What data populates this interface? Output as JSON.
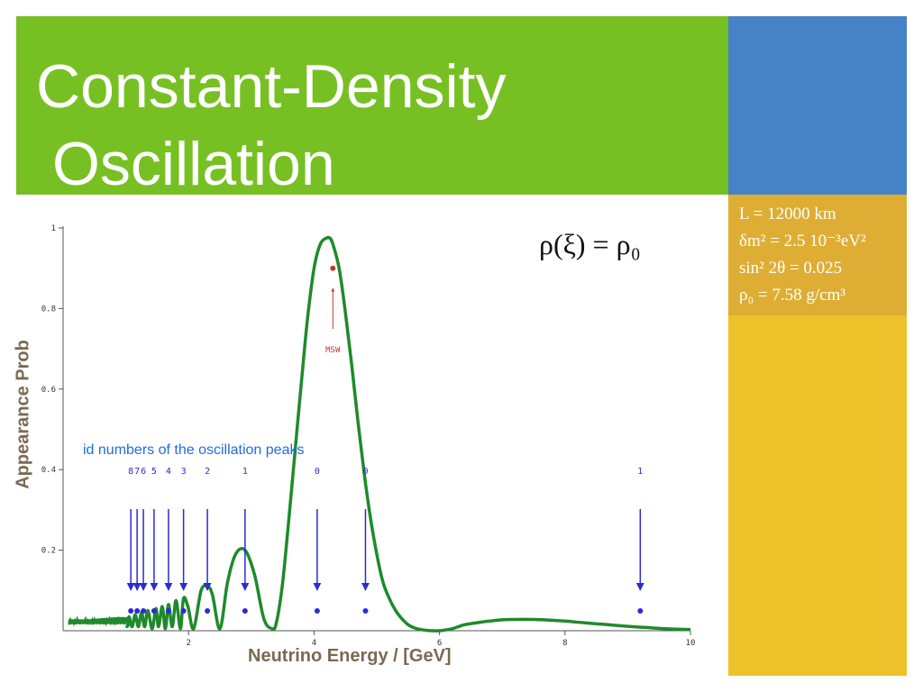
{
  "slide": {
    "title_line1": "Constant-Density",
    "title_line2": "Oscillation",
    "formula": "ρ(ξ) = ρ₀",
    "params": [
      "L = 12000 km",
      "δm² = 2.5 10⁻³eV²",
      "sin² 2θ = 0.025",
      "ρ₀ = 7.58 g/cm³"
    ],
    "annotation": "id numbers of the oscillation peaks",
    "colors": {
      "title_band": "#77c024",
      "blue_block": "#4683c6",
      "params_block": "#deae34",
      "yellow_block": "#edc12a",
      "curve": "#1f8a2c",
      "arrows": "#2b2bd6",
      "msw": "#c0392b"
    }
  },
  "chart_data": {
    "type": "line",
    "xlabel": "Neutrino Energy / [GeV]",
    "ylabel": "Appearance Prob",
    "xlim": [
      0,
      10
    ],
    "ylim": [
      0,
      1
    ],
    "xticks": [
      2,
      4,
      6,
      8,
      10
    ],
    "yticks": [
      0.2,
      0.4,
      0.6,
      0.8,
      1
    ],
    "grid": false,
    "series": [
      {
        "x": [
          0.1,
          0.98,
          1.02,
          1.05,
          1.1,
          1.15,
          1.2,
          1.25,
          1.3,
          1.35,
          1.42,
          1.48,
          1.52,
          1.58,
          1.63,
          1.68,
          1.74,
          1.8,
          1.87,
          1.92,
          1.99,
          2.08,
          2.2,
          2.3,
          2.38,
          2.5,
          2.62,
          2.75,
          2.9,
          3.05,
          3.2,
          3.33,
          3.4,
          3.5,
          3.6,
          3.7,
          3.8,
          3.9,
          4.0,
          4.1,
          4.2,
          4.25,
          4.3,
          4.4,
          4.5,
          4.6,
          4.7,
          4.8,
          4.9,
          5.0,
          5.1,
          5.2,
          5.3,
          5.4,
          5.5,
          5.6,
          5.7,
          5.8,
          5.9,
          6.0,
          6.1,
          6.2,
          6.3,
          6.4,
          6.6,
          6.8,
          7.0,
          7.2,
          7.5,
          7.8,
          8.0,
          8.3,
          8.6,
          9.0,
          9.3,
          9.6,
          10.0
        ],
        "y": [
          0.02,
          0.03,
          0.01,
          0.035,
          0.01,
          0.04,
          0.01,
          0.045,
          0.01,
          0.05,
          0.005,
          0.055,
          0.01,
          0.06,
          0.005,
          0.065,
          0.01,
          0.075,
          0.005,
          0.08,
          0.06,
          0.005,
          0.1,
          0.11,
          0.09,
          0.005,
          0.12,
          0.19,
          0.2,
          0.14,
          0.03,
          0.005,
          0.02,
          0.12,
          0.28,
          0.45,
          0.62,
          0.78,
          0.9,
          0.96,
          0.975,
          0.975,
          0.96,
          0.9,
          0.79,
          0.66,
          0.52,
          0.39,
          0.28,
          0.19,
          0.12,
          0.08,
          0.05,
          0.03,
          0.015,
          0.007,
          0.003,
          0.001,
          0.0,
          0.0,
          0.002,
          0.005,
          0.01,
          0.015,
          0.02,
          0.024,
          0.027,
          0.028,
          0.028,
          0.026,
          0.024,
          0.02,
          0.016,
          0.011,
          0.008,
          0.005,
          0.003
        ]
      }
    ],
    "peak_markers": [
      {
        "label": "8",
        "x": 1.08
      },
      {
        "label": "7",
        "x": 1.18
      },
      {
        "label": "6",
        "x": 1.28
      },
      {
        "label": "5",
        "x": 1.45
      },
      {
        "label": "4",
        "x": 1.68
      },
      {
        "label": "3",
        "x": 1.92
      },
      {
        "label": "2",
        "x": 2.3
      },
      {
        "label": "1",
        "x": 2.9
      },
      {
        "label": "0",
        "x": 4.05
      },
      {
        "label": "0",
        "x": 4.82
      },
      {
        "label": "1",
        "x": 9.2
      }
    ],
    "msw": {
      "label": "MSW",
      "x": 4.3,
      "y": 0.9
    }
  }
}
